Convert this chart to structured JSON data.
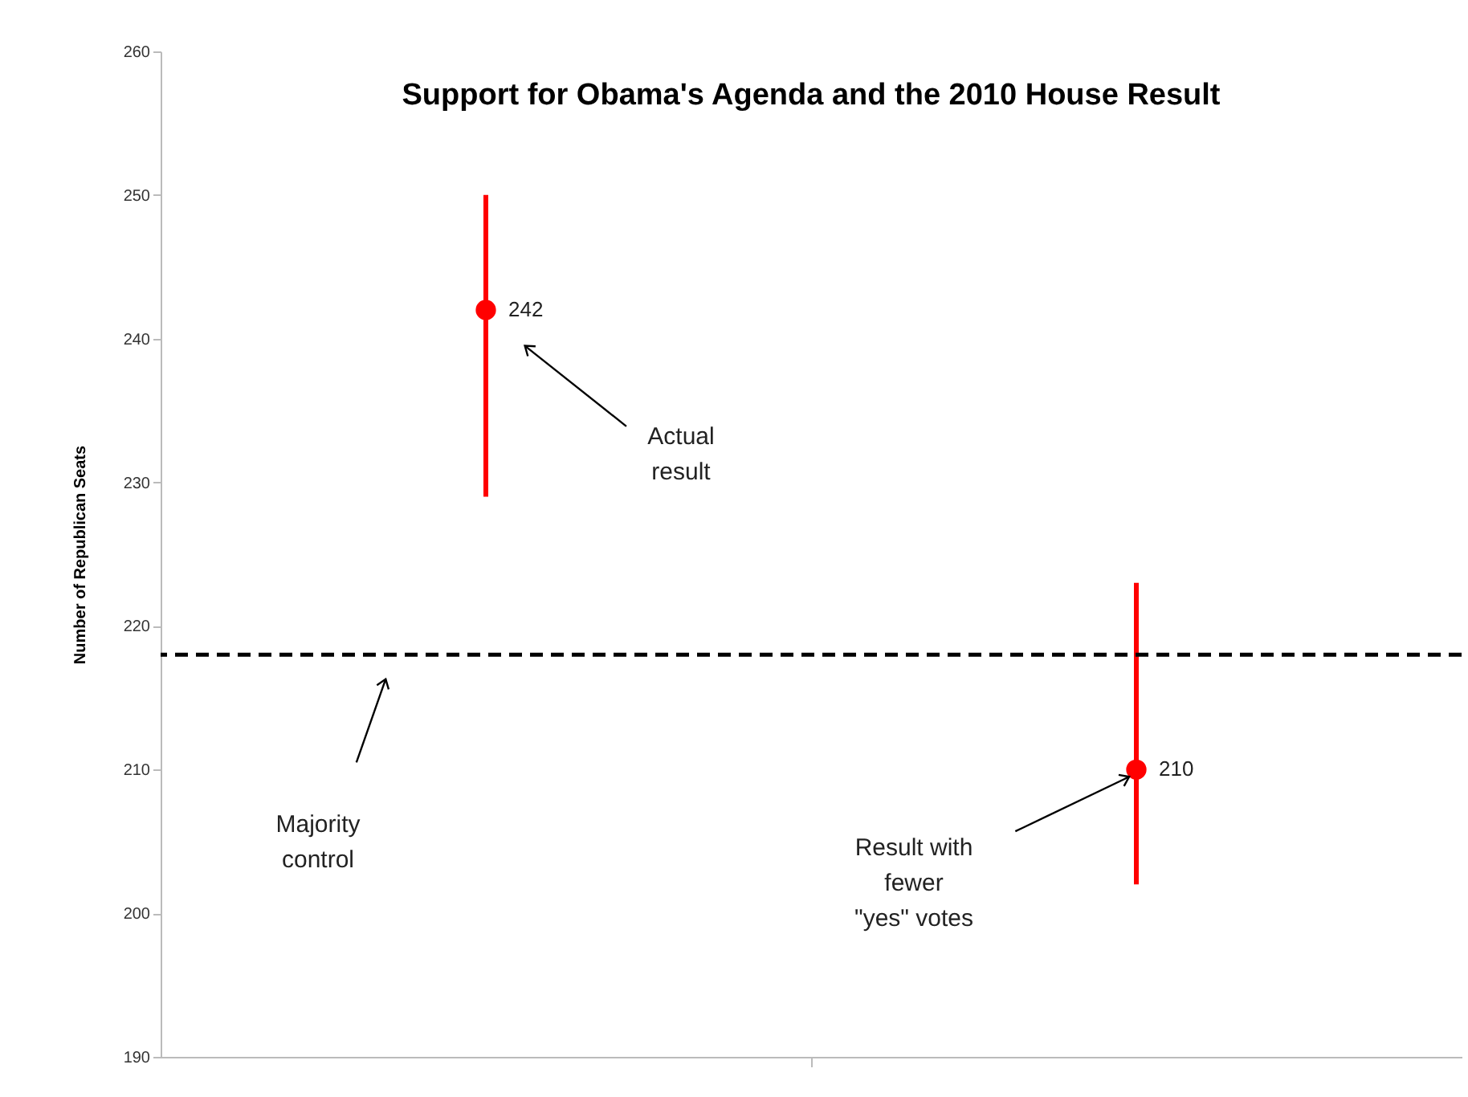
{
  "chart_data": {
    "type": "scatter",
    "title": "Support for Obama's Agenda and the 2010 House Result",
    "ylabel": "Number of Republican Seats",
    "categories": [
      null,
      null
    ],
    "values": [
      242,
      210
    ],
    "errors": [
      [
        229,
        250
      ],
      [
        202,
        223
      ]
    ],
    "color": "#ff0000",
    "marker": "circle",
    "data_labels": true,
    "ylim": [
      190,
      260
    ],
    "yticks": [
      190,
      200,
      210,
      220,
      230,
      240,
      250,
      260
    ],
    "ref_lines": [
      {
        "axis": "y",
        "value": 218,
        "label": "Majority\ncontrol",
        "color": "#000000",
        "line_style": "dashed"
      }
    ],
    "annotations": [
      "Actual\nresult",
      "Result with\nfewer\n\"yes\" votes"
    ],
    "grid": false
  }
}
